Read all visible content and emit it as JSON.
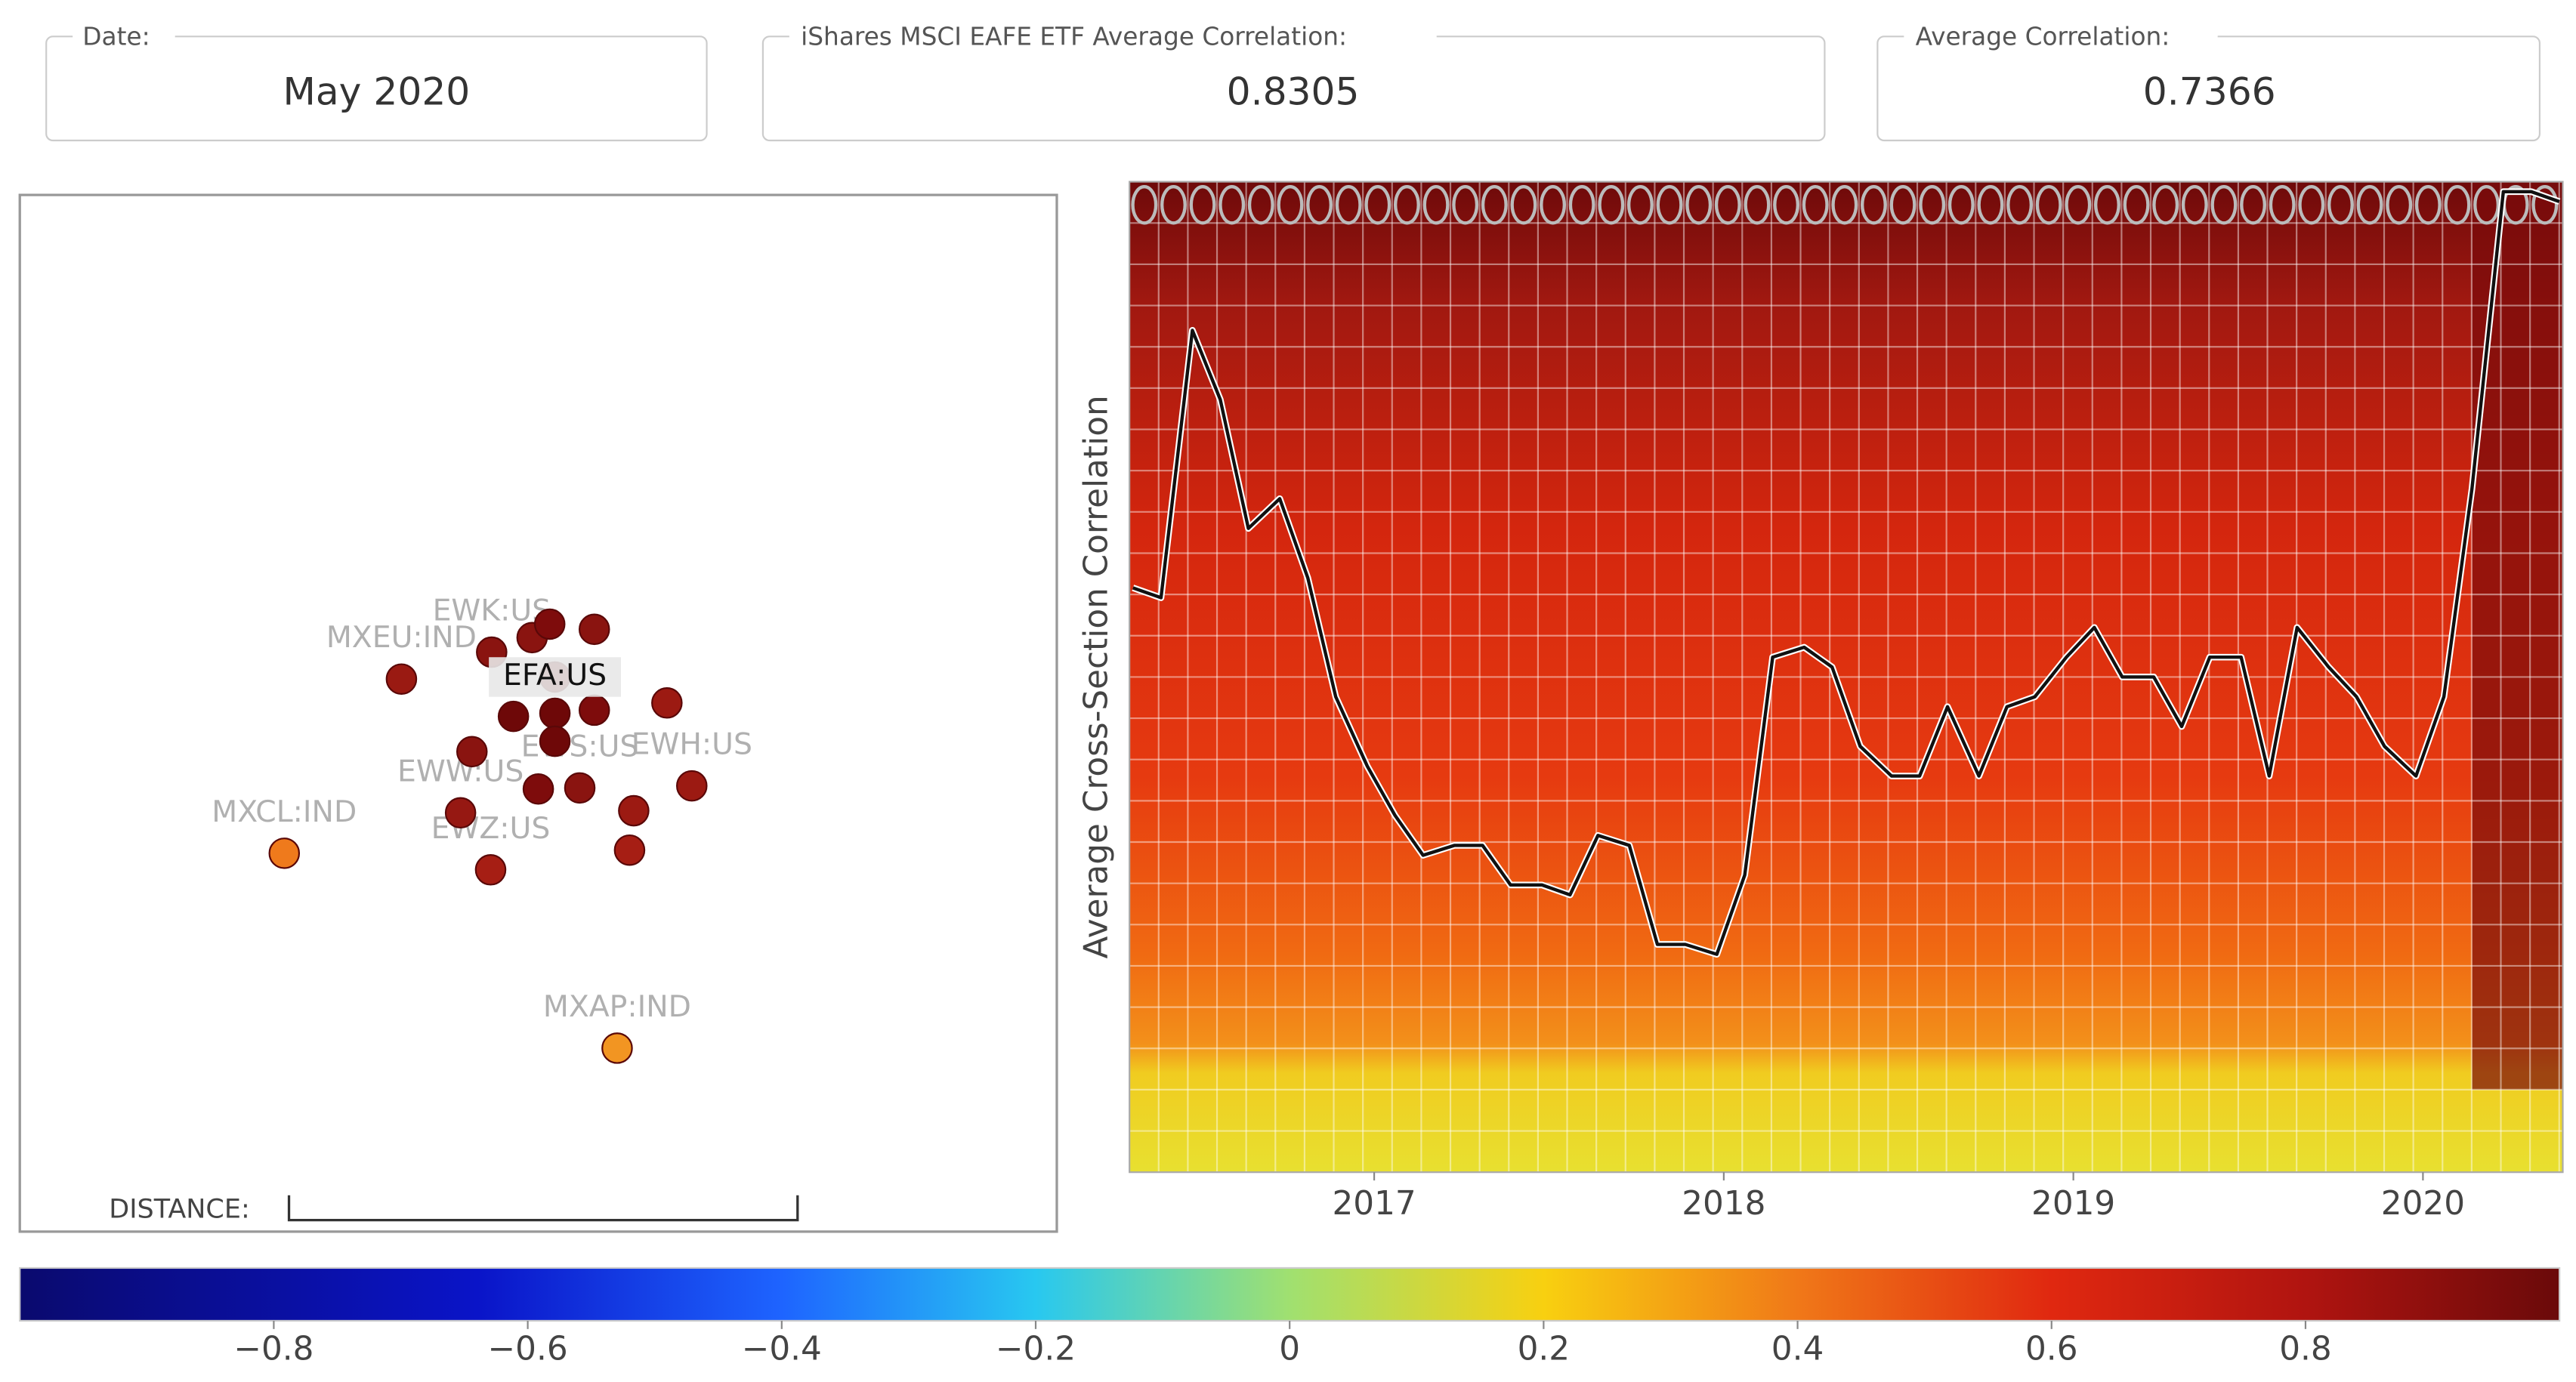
{
  "fields": [
    {
      "label": "Date:",
      "value": "May 2020"
    },
    {
      "label": "iShares MSCI EAFE ETF Average Correlation:",
      "value": 0.8305
    },
    {
      "label": "Average Correlation:",
      "value": 0.7366
    }
  ],
  "map": {
    "distance_label": "DISTANCE:",
    "highlight": "EFA:US",
    "nodes": [
      {
        "label": "EFA:US",
        "x": 51.6,
        "y": 46.5,
        "color": "#7e0c0c"
      },
      {
        "label": "MXEU:IND",
        "x": 36.8,
        "y": 46.7,
        "color": "#9a1a12"
      },
      {
        "label": "MXCL:IND",
        "x": 25.5,
        "y": 63.5,
        "color": "#ef7a1c"
      },
      {
        "label": "MXAP:IND",
        "x": 57.6,
        "y": 82.3,
        "color": "#f29522"
      },
      {
        "label": "EWZ:US",
        "x": 45.4,
        "y": 65.1,
        "color": "#a61e14"
      },
      {
        "label": "EWW:US",
        "x": 42.5,
        "y": 59.6,
        "color": "#961812"
      },
      {
        "label": "EWK:US",
        "x": 45.5,
        "y": 44.1,
        "color": "#8a1410"
      },
      {
        "label": "EWH:US",
        "x": 64.8,
        "y": 57.0,
        "color": "#9c1a12"
      },
      {
        "label": "EWS:US",
        "x": 54.0,
        "y": 57.2,
        "color": "#8a1410"
      },
      {
        "x": 62.4,
        "y": 49.0,
        "color": "#9c1a12"
      },
      {
        "x": 49.4,
        "y": 42.7,
        "color": "#8a1410"
      },
      {
        "x": 51.1,
        "y": 41.4,
        "color": "#7e0c0c"
      },
      {
        "x": 55.4,
        "y": 41.9,
        "color": "#8a1410"
      },
      {
        "x": 47.6,
        "y": 50.3,
        "color": "#6e0808"
      },
      {
        "x": 51.6,
        "y": 50.0,
        "color": "#6e0808"
      },
      {
        "x": 55.4,
        "y": 49.7,
        "color": "#7e0c0c"
      },
      {
        "x": 51.6,
        "y": 52.7,
        "color": "#6e0808"
      },
      {
        "x": 43.6,
        "y": 53.7,
        "color": "#8a1410"
      },
      {
        "x": 50.0,
        "y": 57.3,
        "color": "#7e0c0c"
      },
      {
        "x": 59.2,
        "y": 59.4,
        "color": "#9c1a12"
      },
      {
        "x": 58.8,
        "y": 63.2,
        "color": "#a61e14"
      }
    ]
  },
  "chart_data": {
    "type": "line",
    "y_axis_label": "Average Cross-Section Correlation",
    "x": [
      2016.31,
      2016.39,
      2016.48,
      2016.56,
      2016.64,
      2016.73,
      2016.81,
      2016.89,
      2016.98,
      2017.06,
      2017.14,
      2017.23,
      2017.31,
      2017.39,
      2017.48,
      2017.56,
      2017.64,
      2017.73,
      2017.81,
      2017.89,
      2017.98,
      2018.06,
      2018.14,
      2018.23,
      2018.31,
      2018.39,
      2018.48,
      2018.56,
      2018.64,
      2018.73,
      2018.81,
      2018.89,
      2018.98,
      2019.06,
      2019.14,
      2019.23,
      2019.31,
      2019.39,
      2019.48,
      2019.56,
      2019.64,
      2019.73,
      2019.81,
      2019.89,
      2019.98,
      2020.06,
      2020.14,
      2020.23,
      2020.31,
      2020.39
    ],
    "values": [
      0.59,
      0.58,
      0.85,
      0.78,
      0.65,
      0.68,
      0.6,
      0.48,
      0.41,
      0.36,
      0.32,
      0.33,
      0.33,
      0.29,
      0.29,
      0.28,
      0.34,
      0.33,
      0.23,
      0.23,
      0.22,
      0.3,
      0.52,
      0.53,
      0.51,
      0.43,
      0.4,
      0.4,
      0.47,
      0.4,
      0.47,
      0.48,
      0.52,
      0.55,
      0.5,
      0.5,
      0.45,
      0.52,
      0.52,
      0.4,
      0.55,
      0.51,
      0.48,
      0.43,
      0.4,
      0.48,
      0.69,
      0.99,
      0.99,
      0.98
    ],
    "color": "#111111",
    "xlim": [
      2016.3,
      2020.4
    ],
    "ylim": [
      0,
      1
    ],
    "xticks": [
      2017,
      2018,
      2019,
      2020
    ]
  },
  "colorbar": {
    "lim": [
      -1,
      1
    ],
    "ticks": [
      {
        "value": -0.8,
        "label": "−0.8"
      },
      {
        "value": -0.6,
        "label": "−0.6"
      },
      {
        "value": -0.4,
        "label": "−0.4"
      },
      {
        "value": -0.2,
        "label": "−0.2"
      },
      0,
      0.2,
      0.4,
      0.6,
      0.8
    ]
  }
}
